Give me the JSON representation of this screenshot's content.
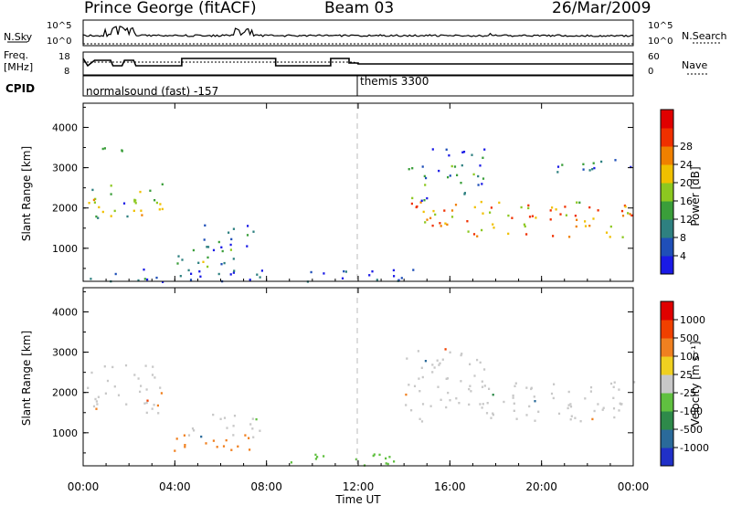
{
  "header": {
    "station": "Prince George (fitACF)",
    "beam": "Beam 03",
    "date": "26/Mar/2009"
  },
  "status_panel": {
    "nsky_label": "N.Sky",
    "nsearch_label": "N.Search",
    "left_ticks": [
      "10^5",
      "10^0"
    ],
    "right_ticks": [
      "10^5",
      "10^0"
    ]
  },
  "freq_panel": {
    "freq_label_1": "Freq.",
    "freq_label_2": "[MHz]",
    "nave_label": "Nave",
    "left_ticks": [
      "18",
      "8"
    ],
    "right_ticks": [
      "60",
      "0"
    ]
  },
  "cpid_panel": {
    "label": "CPID",
    "programs": [
      {
        "name": "normalsound (fast) -157",
        "start_hour": 0
      },
      {
        "name": "themis 3300",
        "start_hour": 12
      }
    ]
  },
  "chart_data": [
    {
      "type": "heatmap",
      "name": "power",
      "ylabel": "Slant Range [km]",
      "xlabel": "Time UT",
      "xticks": [
        "00:00",
        "04:00",
        "08:00",
        "12:00",
        "16:00",
        "20:00",
        "00:00"
      ],
      "yticks": [
        "1000",
        "2000",
        "3000",
        "4000"
      ],
      "xlim_hours": [
        0,
        24
      ],
      "ylim_km": [
        180,
        4600
      ],
      "colorbar": {
        "label": "Power [dB]",
        "ticks": [
          "4",
          "8",
          "12",
          "16",
          "20",
          "24",
          "28"
        ],
        "range": [
          0,
          30
        ],
        "colors": [
          "#1a1ae6",
          "#1f4fb8",
          "#2e8080",
          "#3a9e3a",
          "#8cc820",
          "#f0c000",
          "#f08000",
          "#f03000",
          "#e00000"
        ]
      },
      "echo_regions": [
        {
          "t": [
            0.1,
            1.4
          ],
          "r": [
            1500,
            2600
          ],
          "p": 14
        },
        {
          "t": [
            1.3,
            2.5
          ],
          "r": [
            1700,
            2300
          ],
          "p": 10
        },
        {
          "t": [
            2.1,
            3.5
          ],
          "r": [
            1800,
            2800
          ],
          "p": 16
        },
        {
          "t": [
            0.6,
            2.4
          ],
          "r": [
            3300,
            3550
          ],
          "p": 6
        },
        {
          "t": [
            3.9,
            6.6
          ],
          "r": [
            500,
            1100
          ],
          "p": 12
        },
        {
          "t": [
            5.0,
            7.6
          ],
          "r": [
            900,
            1600
          ],
          "p": 8
        },
        {
          "t": [
            14.0,
            24.0
          ],
          "r": [
            1300,
            2200
          ],
          "p": 20
        },
        {
          "t": [
            14.0,
            17.5
          ],
          "r": [
            2200,
            3100
          ],
          "p": 8
        },
        {
          "t": [
            15.0,
            18.0
          ],
          "r": [
            3200,
            3500
          ],
          "p": 6
        },
        {
          "t": [
            20.5,
            24.0
          ],
          "r": [
            2900,
            3300
          ],
          "p": 6
        },
        {
          "t": [
            0.0,
            14.5
          ],
          "r": [
            180,
            500
          ],
          "p": 4
        }
      ]
    },
    {
      "type": "heatmap",
      "name": "velocity",
      "ylabel": "Slant Range [km]",
      "xlabel": "Time UT",
      "xticks": [
        "00:00",
        "04:00",
        "08:00",
        "12:00",
        "16:00",
        "20:00",
        "00:00"
      ],
      "yticks": [
        "1000",
        "2000",
        "3000",
        "4000"
      ],
      "xlim_hours": [
        0,
        24
      ],
      "ylim_km": [
        180,
        4600
      ],
      "colorbar": {
        "label": "Velocity [m s⁻¹]",
        "ticks": [
          "1000",
          "500",
          "100",
          "25",
          "-25",
          "-100",
          "-500",
          "-1000"
        ],
        "colors": [
          "#2030c8",
          "#2a6a9a",
          "#2e8a4a",
          "#60c040",
          "#c8c8c8",
          "#f0d020",
          "#f08020",
          "#f04000",
          "#e00000"
        ]
      },
      "echo_regions": [
        {
          "t": [
            0.1,
            3.4
          ],
          "r": [
            1500,
            2700
          ],
          "v": 0
        },
        {
          "t": [
            3.2,
            3.6
          ],
          "r": [
            1400,
            2100
          ],
          "v": -300
        },
        {
          "t": [
            3.9,
            7.4
          ],
          "r": [
            500,
            1000
          ],
          "v": -300
        },
        {
          "t": [
            4.5,
            7.8
          ],
          "r": [
            900,
            1500
          ],
          "v": 0
        },
        {
          "t": [
            14.0,
            24.0
          ],
          "r": [
            1300,
            2300
          ],
          "v": 0
        },
        {
          "t": [
            14.0,
            17.5
          ],
          "r": [
            2200,
            3100
          ],
          "v": 0
        },
        {
          "t": [
            9.0,
            14.5
          ],
          "r": [
            180,
            500
          ],
          "v": 50
        }
      ]
    }
  ]
}
